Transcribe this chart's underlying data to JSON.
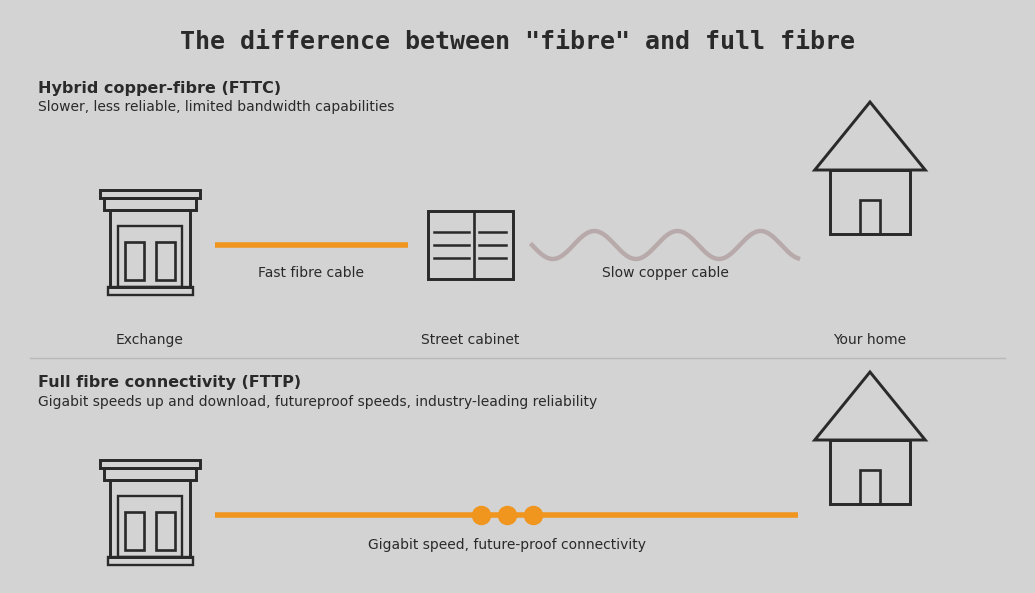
{
  "title": "The difference between \"fibre\" and full fibre",
  "bg_color": "#d3d3d3",
  "dark_color": "#2a2a2a",
  "orange_color": "#f0951d",
  "grey_line_color": "#b8aaaa",
  "section1_bold": "Hybrid copper-fibre (FTTC)",
  "section1_sub": "Slower, less reliable, limited bandwidth capabilities",
  "section2_bold": "Full fibre connectivity (FTTP)",
  "section2_sub": "Gigabit speeds up and download, futureproof speeds, industry-leading reliability",
  "label_exchange": "Exchange",
  "label_cabinet": "Street cabinet",
  "label_home": "Your home",
  "label_fast": "Fast fibre cable",
  "label_slow": "Slow copper cable",
  "label_gigabit": "Gigabit speed, future-proof connectivity",
  "title_fontsize": 18,
  "section_bold_fontsize": 11.5,
  "section_sub_fontsize": 10,
  "label_fontsize": 10
}
